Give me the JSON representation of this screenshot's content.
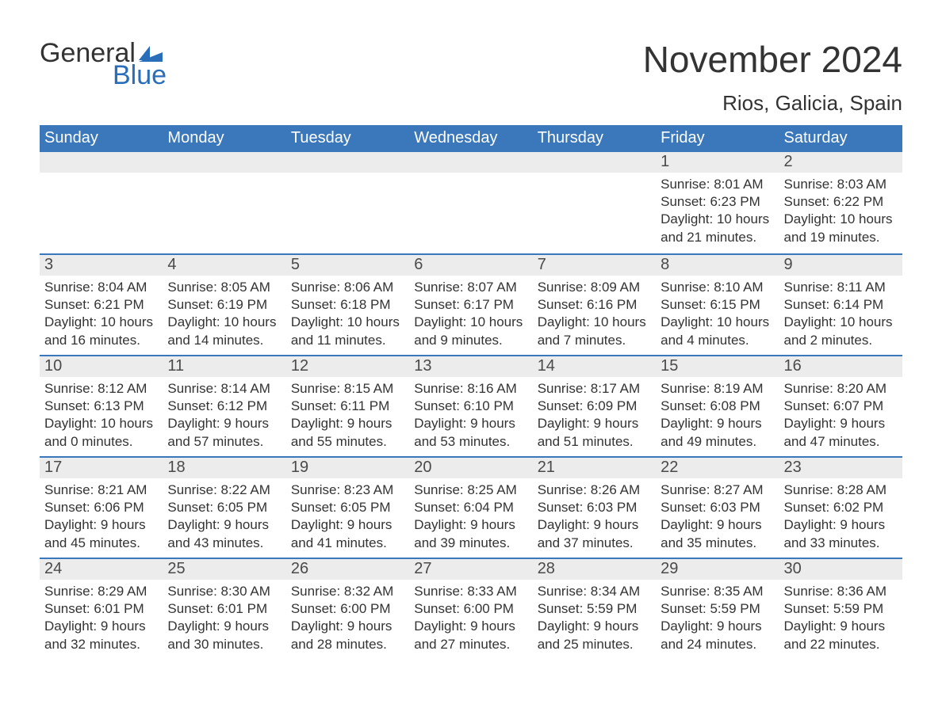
{
  "brand": {
    "name_top": "General",
    "name_bottom": "Blue",
    "accent_color": "#2a6db9"
  },
  "title": "November 2024",
  "location": "Rios, Galicia, Spain",
  "colors": {
    "header_bg": "#3a77bb",
    "header_text": "#ffffff",
    "daynum_bg": "#ececec",
    "body_text": "#333333",
    "week_divider": "#3a77bb",
    "page_bg": "#ffffff"
  },
  "fonts": {
    "title_size_pt": 34,
    "location_size_pt": 20,
    "weekday_size_pt": 15,
    "body_size_pt": 13
  },
  "weekdays": [
    "Sunday",
    "Monday",
    "Tuesday",
    "Wednesday",
    "Thursday",
    "Friday",
    "Saturday"
  ],
  "labels": {
    "sunrise": "Sunrise:",
    "sunset": "Sunset:",
    "daylight": "Daylight:"
  },
  "weeks": [
    [
      {
        "empty": true
      },
      {
        "empty": true
      },
      {
        "empty": true
      },
      {
        "empty": true
      },
      {
        "empty": true
      },
      {
        "day": "1",
        "sunrise": "8:01 AM",
        "sunset": "6:23 PM",
        "daylight_l1": "10 hours",
        "daylight_l2": "and 21 minutes."
      },
      {
        "day": "2",
        "sunrise": "8:03 AM",
        "sunset": "6:22 PM",
        "daylight_l1": "10 hours",
        "daylight_l2": "and 19 minutes."
      }
    ],
    [
      {
        "day": "3",
        "sunrise": "8:04 AM",
        "sunset": "6:21 PM",
        "daylight_l1": "10 hours",
        "daylight_l2": "and 16 minutes."
      },
      {
        "day": "4",
        "sunrise": "8:05 AM",
        "sunset": "6:19 PM",
        "daylight_l1": "10 hours",
        "daylight_l2": "and 14 minutes."
      },
      {
        "day": "5",
        "sunrise": "8:06 AM",
        "sunset": "6:18 PM",
        "daylight_l1": "10 hours",
        "daylight_l2": "and 11 minutes."
      },
      {
        "day": "6",
        "sunrise": "8:07 AM",
        "sunset": "6:17 PM",
        "daylight_l1": "10 hours",
        "daylight_l2": "and 9 minutes."
      },
      {
        "day": "7",
        "sunrise": "8:09 AM",
        "sunset": "6:16 PM",
        "daylight_l1": "10 hours",
        "daylight_l2": "and 7 minutes."
      },
      {
        "day": "8",
        "sunrise": "8:10 AM",
        "sunset": "6:15 PM",
        "daylight_l1": "10 hours",
        "daylight_l2": "and 4 minutes."
      },
      {
        "day": "9",
        "sunrise": "8:11 AM",
        "sunset": "6:14 PM",
        "daylight_l1": "10 hours",
        "daylight_l2": "and 2 minutes."
      }
    ],
    [
      {
        "day": "10",
        "sunrise": "8:12 AM",
        "sunset": "6:13 PM",
        "daylight_l1": "10 hours",
        "daylight_l2": "and 0 minutes."
      },
      {
        "day": "11",
        "sunrise": "8:14 AM",
        "sunset": "6:12 PM",
        "daylight_l1": "9 hours",
        "daylight_l2": "and 57 minutes."
      },
      {
        "day": "12",
        "sunrise": "8:15 AM",
        "sunset": "6:11 PM",
        "daylight_l1": "9 hours",
        "daylight_l2": "and 55 minutes."
      },
      {
        "day": "13",
        "sunrise": "8:16 AM",
        "sunset": "6:10 PM",
        "daylight_l1": "9 hours",
        "daylight_l2": "and 53 minutes."
      },
      {
        "day": "14",
        "sunrise": "8:17 AM",
        "sunset": "6:09 PM",
        "daylight_l1": "9 hours",
        "daylight_l2": "and 51 minutes."
      },
      {
        "day": "15",
        "sunrise": "8:19 AM",
        "sunset": "6:08 PM",
        "daylight_l1": "9 hours",
        "daylight_l2": "and 49 minutes."
      },
      {
        "day": "16",
        "sunrise": "8:20 AM",
        "sunset": "6:07 PM",
        "daylight_l1": "9 hours",
        "daylight_l2": "and 47 minutes."
      }
    ],
    [
      {
        "day": "17",
        "sunrise": "8:21 AM",
        "sunset": "6:06 PM",
        "daylight_l1": "9 hours",
        "daylight_l2": "and 45 minutes."
      },
      {
        "day": "18",
        "sunrise": "8:22 AM",
        "sunset": "6:05 PM",
        "daylight_l1": "9 hours",
        "daylight_l2": "and 43 minutes."
      },
      {
        "day": "19",
        "sunrise": "8:23 AM",
        "sunset": "6:05 PM",
        "daylight_l1": "9 hours",
        "daylight_l2": "and 41 minutes."
      },
      {
        "day": "20",
        "sunrise": "8:25 AM",
        "sunset": "6:04 PM",
        "daylight_l1": "9 hours",
        "daylight_l2": "and 39 minutes."
      },
      {
        "day": "21",
        "sunrise": "8:26 AM",
        "sunset": "6:03 PM",
        "daylight_l1": "9 hours",
        "daylight_l2": "and 37 minutes."
      },
      {
        "day": "22",
        "sunrise": "8:27 AM",
        "sunset": "6:03 PM",
        "daylight_l1": "9 hours",
        "daylight_l2": "and 35 minutes."
      },
      {
        "day": "23",
        "sunrise": "8:28 AM",
        "sunset": "6:02 PM",
        "daylight_l1": "9 hours",
        "daylight_l2": "and 33 minutes."
      }
    ],
    [
      {
        "day": "24",
        "sunrise": "8:29 AM",
        "sunset": "6:01 PM",
        "daylight_l1": "9 hours",
        "daylight_l2": "and 32 minutes."
      },
      {
        "day": "25",
        "sunrise": "8:30 AM",
        "sunset": "6:01 PM",
        "daylight_l1": "9 hours",
        "daylight_l2": "and 30 minutes."
      },
      {
        "day": "26",
        "sunrise": "8:32 AM",
        "sunset": "6:00 PM",
        "daylight_l1": "9 hours",
        "daylight_l2": "and 28 minutes."
      },
      {
        "day": "27",
        "sunrise": "8:33 AM",
        "sunset": "6:00 PM",
        "daylight_l1": "9 hours",
        "daylight_l2": "and 27 minutes."
      },
      {
        "day": "28",
        "sunrise": "8:34 AM",
        "sunset": "5:59 PM",
        "daylight_l1": "9 hours",
        "daylight_l2": "and 25 minutes."
      },
      {
        "day": "29",
        "sunrise": "8:35 AM",
        "sunset": "5:59 PM",
        "daylight_l1": "9 hours",
        "daylight_l2": "and 24 minutes."
      },
      {
        "day": "30",
        "sunrise": "8:36 AM",
        "sunset": "5:59 PM",
        "daylight_l1": "9 hours",
        "daylight_l2": "and 22 minutes."
      }
    ]
  ]
}
